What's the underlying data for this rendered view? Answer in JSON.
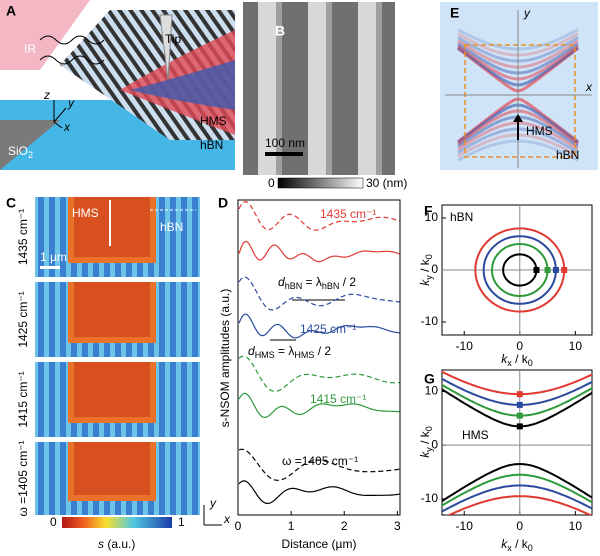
{
  "A": {
    "label": "A",
    "ir": "IR",
    "tip": "Tip",
    "hms": "HMS",
    "hbn": "hBN",
    "sio2": [
      "SiO",
      "2"
    ],
    "z": "z",
    "y": "y",
    "x": "x"
  },
  "B": {
    "label": "B",
    "scale": "100 nm",
    "cb_min": "0",
    "cb_max": "30 (nm)"
  },
  "E": {
    "label": "E",
    "y": "y",
    "x": "x",
    "hms": "HMS",
    "hbn": "hBN"
  },
  "C": {
    "label": "C",
    "hms": "HMS",
    "hbn": "hBN",
    "scale": "1 µm",
    "frequencies": [
      "1435 cm⁻¹",
      "1425 cm⁻¹",
      "1415 cm⁻¹",
      "ω =1405 cm⁻¹"
    ],
    "cb_min": "0",
    "cb_max": "1",
    "cb_label": [
      "s",
      " (a.u.)"
    ],
    "y": "y",
    "x": "x"
  },
  "D": {
    "label": "D",
    "ylabel": "s-NSOM amplitudes (a.u.)",
    "xlabel": "Distance (µm)",
    "xlim": [
      0,
      3.05
    ],
    "xticks": [
      0,
      1,
      2,
      3
    ],
    "series": [
      {
        "name": "1435 cm⁻¹",
        "color": "#e03a33"
      },
      {
        "name": "1425 cm⁻¹",
        "color": "#2b4a9e"
      },
      {
        "name": "1415 cm⁻¹",
        "color": "#2e9a3a"
      },
      {
        "name": "ω =1405 cm⁻¹",
        "color": "#000000"
      }
    ],
    "d_hbn": [
      "d",
      "hBN",
      " = λ",
      "hBN",
      " / 2"
    ],
    "d_hms": [
      "d",
      "HMS",
      " = λ",
      "HMS",
      " / 2"
    ]
  },
  "F": {
    "label": "F",
    "hbn": "hBN",
    "xlim": [
      -14,
      13
    ],
    "ylim": [
      -12.5,
      12.5
    ],
    "xticks": [
      -10,
      0,
      10
    ],
    "yticks": [
      -10,
      0,
      10
    ],
    "xlabel": [
      "k",
      "x",
      " / k",
      "0"
    ],
    "ylabel": [
      "k",
      "y",
      " / k",
      "0"
    ],
    "circles": [
      {
        "color": "#000000",
        "r": 3
      },
      {
        "color": "#2e9a3a",
        "r": 5
      },
      {
        "color": "#2b4a9e",
        "r": 6.5
      },
      {
        "color": "#e03a33",
        "r": 8
      }
    ]
  },
  "G": {
    "label": "G",
    "hms": "HMS",
    "xlim": [
      -14,
      13
    ],
    "ylim": [
      -13,
      14
    ],
    "xticks": [
      -10,
      0,
      10
    ],
    "yticks": [
      -10,
      0,
      10
    ],
    "xlabel": [
      "k",
      "x",
      " / k",
      "0"
    ],
    "ylabel": [
      "k",
      "y",
      " / k",
      "0"
    ],
    "branches": [
      {
        "color": "#000000",
        "k0": 3.5
      },
      {
        "color": "#2e9a3a",
        "k0": 5.5
      },
      {
        "color": "#2b4a9e",
        "k0": 7.5
      },
      {
        "color": "#e03a33",
        "k0": 9.5
      }
    ]
  }
}
